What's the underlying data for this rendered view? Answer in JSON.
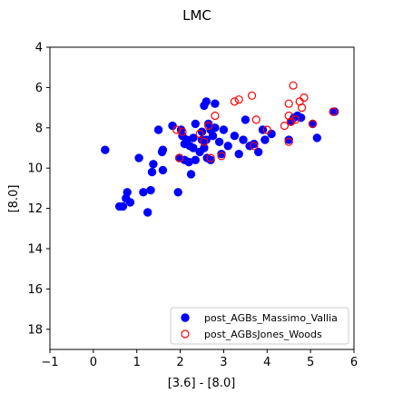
{
  "chart_data": {
    "type": "scatter",
    "title": "LMC",
    "xlabel": "[3.6] - [8.0]",
    "ylabel": "[8.0]",
    "xlim": [
      -1,
      6
    ],
    "ylim": [
      19,
      4
    ],
    "y_inverted": true,
    "x_ticks": [
      "−1",
      "0",
      "1",
      "2",
      "3",
      "4",
      "5",
      "6"
    ],
    "y_ticks": [
      "4",
      "6",
      "8",
      "10",
      "12",
      "14",
      "16",
      "18"
    ],
    "grid": false,
    "legend_position": "lower-right",
    "series": [
      {
        "name": "post_AGBs_Massimo_Vallia",
        "marker": "filled-circle",
        "color": "#0000ff",
        "points": [
          [
            0.27,
            9.1
          ],
          [
            0.6,
            11.9
          ],
          [
            0.68,
            11.9
          ],
          [
            0.75,
            11.5
          ],
          [
            0.78,
            11.2
          ],
          [
            0.85,
            11.7
          ],
          [
            1.05,
            9.5
          ],
          [
            1.15,
            11.2
          ],
          [
            1.25,
            12.2
          ],
          [
            1.32,
            11.1
          ],
          [
            1.35,
            10.2
          ],
          [
            1.38,
            9.8
          ],
          [
            1.5,
            8.1
          ],
          [
            1.58,
            9.2
          ],
          [
            1.6,
            9.1
          ],
          [
            1.6,
            10.1
          ],
          [
            1.82,
            7.9
          ],
          [
            1.95,
            11.2
          ],
          [
            1.98,
            9.5
          ],
          [
            2.02,
            8.1
          ],
          [
            2.05,
            8.4
          ],
          [
            2.1,
            9.6
          ],
          [
            2.1,
            8.8
          ],
          [
            2.15,
            8.6
          ],
          [
            2.2,
            9.7
          ],
          [
            2.22,
            8.9
          ],
          [
            2.25,
            10.3
          ],
          [
            2.3,
            8.5
          ],
          [
            2.3,
            9.0
          ],
          [
            2.35,
            9.6
          ],
          [
            2.35,
            7.8
          ],
          [
            2.45,
            9.2
          ],
          [
            2.5,
            8.2
          ],
          [
            2.5,
            8.6
          ],
          [
            2.55,
            9.0
          ],
          [
            2.55,
            6.9
          ],
          [
            2.6,
            6.7
          ],
          [
            2.6,
            8.6
          ],
          [
            2.62,
            9.5
          ],
          [
            2.65,
            7.8
          ],
          [
            2.7,
            8.1
          ],
          [
            2.7,
            9.6
          ],
          [
            2.75,
            8.4
          ],
          [
            2.8,
            6.8
          ],
          [
            2.8,
            8.0
          ],
          [
            2.9,
            8.7
          ],
          [
            2.95,
            9.3
          ],
          [
            3.0,
            8.1
          ],
          [
            3.1,
            8.9
          ],
          [
            3.25,
            8.4
          ],
          [
            3.35,
            9.3
          ],
          [
            3.45,
            8.6
          ],
          [
            3.5,
            7.6
          ],
          [
            3.6,
            8.9
          ],
          [
            3.7,
            8.8
          ],
          [
            3.8,
            9.2
          ],
          [
            3.9,
            8.1
          ],
          [
            3.95,
            8.6
          ],
          [
            4.1,
            8.3
          ],
          [
            4.5,
            8.6
          ],
          [
            4.55,
            7.7
          ],
          [
            4.62,
            7.5
          ],
          [
            4.7,
            7.4
          ],
          [
            4.78,
            7.5
          ],
          [
            5.05,
            7.8
          ],
          [
            5.15,
            8.5
          ],
          [
            5.55,
            7.2
          ]
        ]
      },
      {
        "name": "post_AGBsJones_Woods",
        "marker": "open-circle",
        "color": "#ff0000",
        "points": [
          [
            1.92,
            8.1
          ],
          [
            1.98,
            9.5
          ],
          [
            2.05,
            8.2
          ],
          [
            2.45,
            8.3
          ],
          [
            2.55,
            8.7
          ],
          [
            2.65,
            7.9
          ],
          [
            2.7,
            9.5
          ],
          [
            2.8,
            7.4
          ],
          [
            2.95,
            9.4
          ],
          [
            3.25,
            6.7
          ],
          [
            3.35,
            6.6
          ],
          [
            3.65,
            6.4
          ],
          [
            3.7,
            8.9
          ],
          [
            3.75,
            7.6
          ],
          [
            4.0,
            8.1
          ],
          [
            4.4,
            7.9
          ],
          [
            4.5,
            6.8
          ],
          [
            4.5,
            7.4
          ],
          [
            4.5,
            8.7
          ],
          [
            4.55,
            7.7
          ],
          [
            4.6,
            5.9
          ],
          [
            4.65,
            7.6
          ],
          [
            4.75,
            6.7
          ],
          [
            4.8,
            7.0
          ],
          [
            4.85,
            6.5
          ],
          [
            5.05,
            7.8
          ],
          [
            5.52,
            7.2
          ]
        ]
      }
    ]
  }
}
